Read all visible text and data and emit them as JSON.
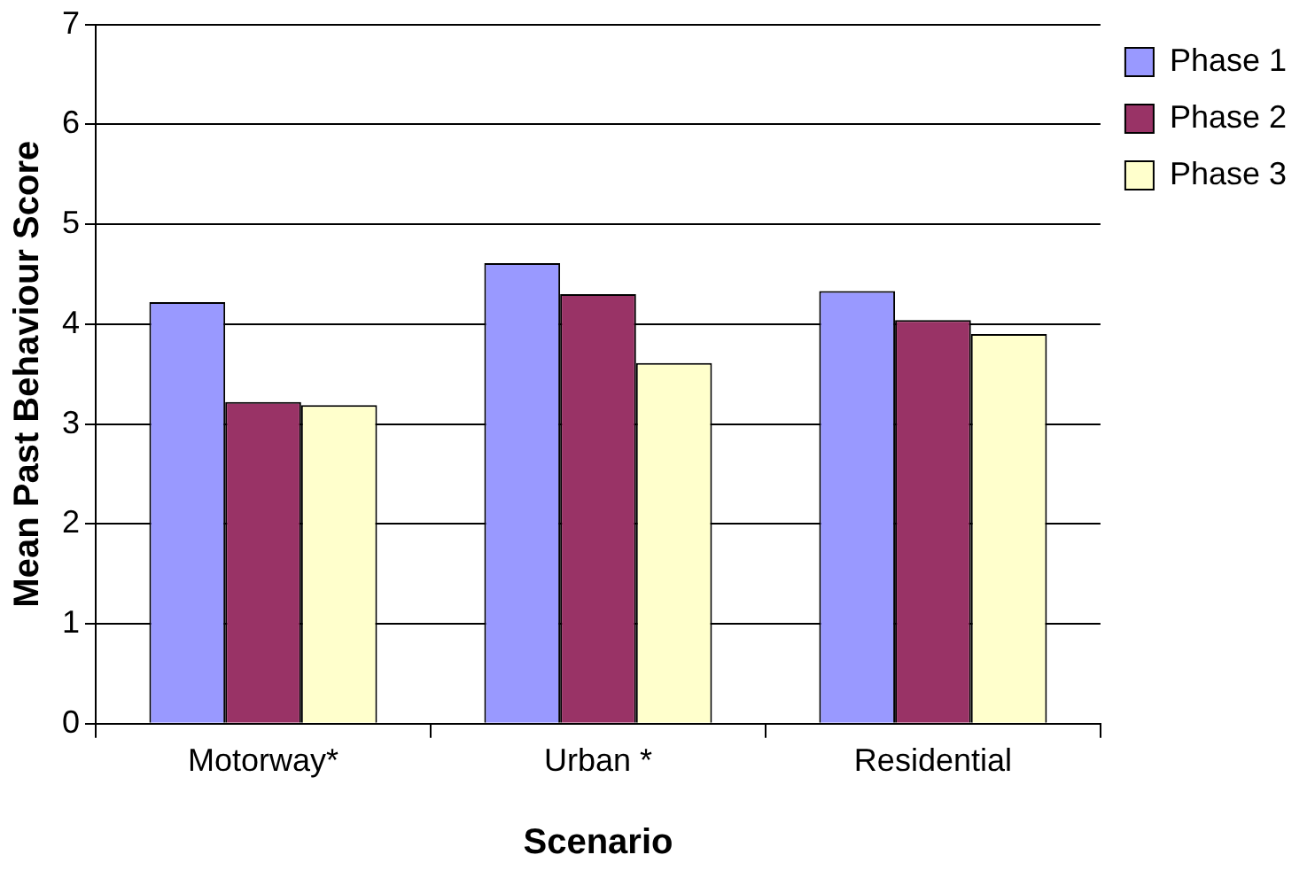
{
  "chart_data": {
    "type": "bar",
    "xlabel": "Scenario",
    "ylabel": "Mean Past Behaviour Score",
    "categories": [
      "Motorway*",
      "Urban *",
      "Residential"
    ],
    "series": [
      {
        "name": "Phase 1",
        "color": "#9999ff",
        "values": [
          4.22,
          4.61,
          4.33
        ]
      },
      {
        "name": "Phase 2",
        "color": "#993366",
        "values": [
          3.22,
          4.3,
          4.04
        ]
      },
      {
        "name": "Phase 3",
        "color": "#ffffcc",
        "values": [
          3.19,
          3.61,
          3.9
        ]
      }
    ],
    "ylim": [
      0,
      7
    ],
    "yticks": [
      0,
      1,
      2,
      3,
      4,
      5,
      6,
      7
    ],
    "grid": "y",
    "legend": "right"
  }
}
